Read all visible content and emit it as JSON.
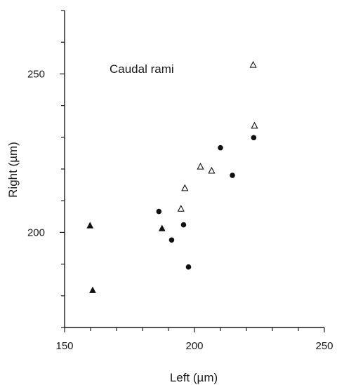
{
  "chart_data": {
    "type": "scatter",
    "title": "",
    "annotation": "Caudal rami",
    "xlabel": "Left (µm)",
    "ylabel": "Right (µm)",
    "xlim": [
      150,
      250
    ],
    "ylim": [
      170,
      270
    ],
    "x_ticks": [
      150,
      200,
      250
    ],
    "y_ticks": [
      200,
      250
    ],
    "x_minor_step": 10,
    "y_minor_step": 10,
    "grid": false,
    "series": [
      {
        "marker": "filled-circle",
        "color": "#111111",
        "points": [
          {
            "x": 186.3,
            "y": 206.6
          },
          {
            "x": 191.2,
            "y": 197.6
          },
          {
            "x": 195.8,
            "y": 202.4
          },
          {
            "x": 197.7,
            "y": 189.1
          },
          {
            "x": 210.0,
            "y": 226.7
          },
          {
            "x": 214.6,
            "y": 218.0
          },
          {
            "x": 222.8,
            "y": 229.9
          }
        ]
      },
      {
        "marker": "filled-triangle",
        "color": "#111111",
        "points": [
          {
            "x": 159.8,
            "y": 202.2
          },
          {
            "x": 160.8,
            "y": 181.8
          },
          {
            "x": 187.5,
            "y": 201.3
          }
        ]
      },
      {
        "marker": "open-triangle",
        "color": "#111111",
        "points": [
          {
            "x": 194.8,
            "y": 207.5
          },
          {
            "x": 196.3,
            "y": 214.0
          },
          {
            "x": 202.3,
            "y": 220.8
          },
          {
            "x": 206.6,
            "y": 219.5
          },
          {
            "x": 222.6,
            "y": 252.9
          },
          {
            "x": 223.1,
            "y": 233.7
          }
        ]
      }
    ]
  }
}
